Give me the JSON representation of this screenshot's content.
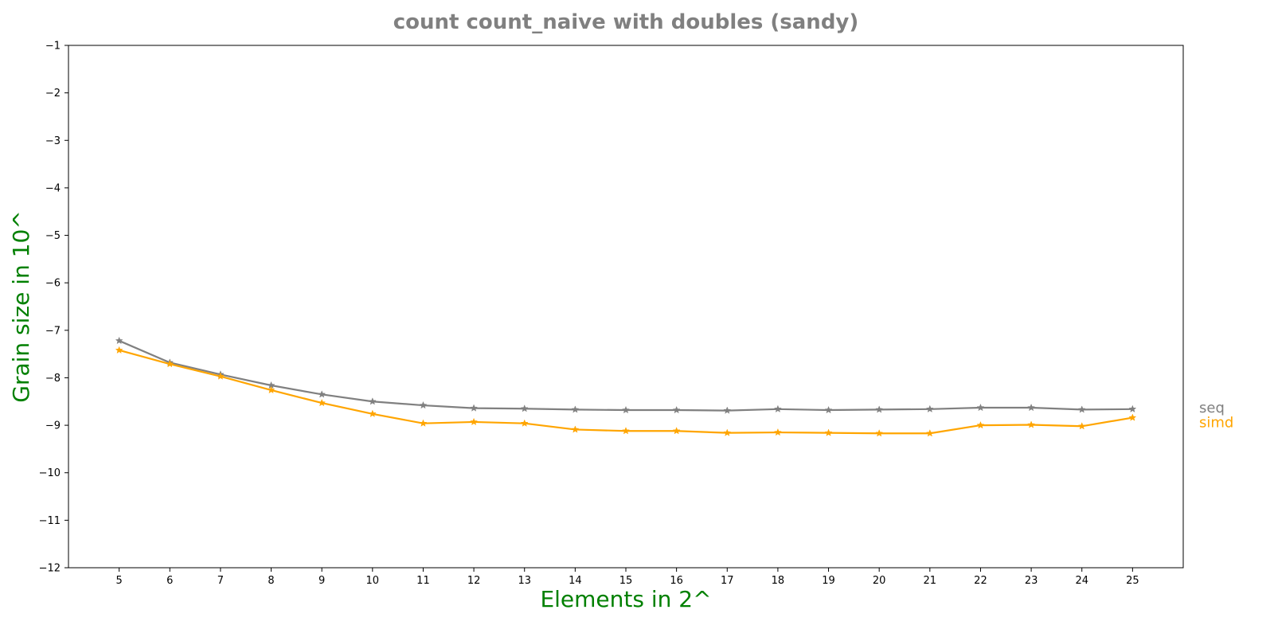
{
  "chart_data": {
    "type": "line",
    "title": "count count_naive with doubles  (sandy)",
    "xlabel": "Elements in 2^",
    "ylabel": "Grain size in 10^",
    "x": [
      5,
      6,
      7,
      8,
      9,
      10,
      11,
      12,
      13,
      14,
      15,
      16,
      17,
      18,
      19,
      20,
      21,
      22,
      23,
      24,
      25
    ],
    "xlim": [
      4,
      26
    ],
    "ylim": [
      -12,
      -1
    ],
    "yticks": [
      -1,
      -2,
      -3,
      -4,
      -5,
      -6,
      -7,
      -8,
      -9,
      -10,
      -11,
      -12
    ],
    "grid": false,
    "marker": "star",
    "series": [
      {
        "name": "seq",
        "color": "#808080",
        "values": [
          -7.22,
          -7.68,
          -7.93,
          -8.16,
          -8.35,
          -8.5,
          -8.58,
          -8.64,
          -8.65,
          -8.67,
          -8.68,
          -8.68,
          -8.69,
          -8.66,
          -8.68,
          -8.67,
          -8.66,
          -8.63,
          -8.63,
          -8.67,
          -8.66
        ]
      },
      {
        "name": "simd",
        "color": "#FFA500",
        "values": [
          -7.42,
          -7.71,
          -7.97,
          -8.26,
          -8.53,
          -8.76,
          -8.96,
          -8.93,
          -8.96,
          -9.09,
          -9.12,
          -9.12,
          -9.16,
          -9.15,
          -9.16,
          -9.17,
          -9.17,
          -9.0,
          -8.99,
          -9.02,
          -8.84
        ]
      }
    ]
  }
}
